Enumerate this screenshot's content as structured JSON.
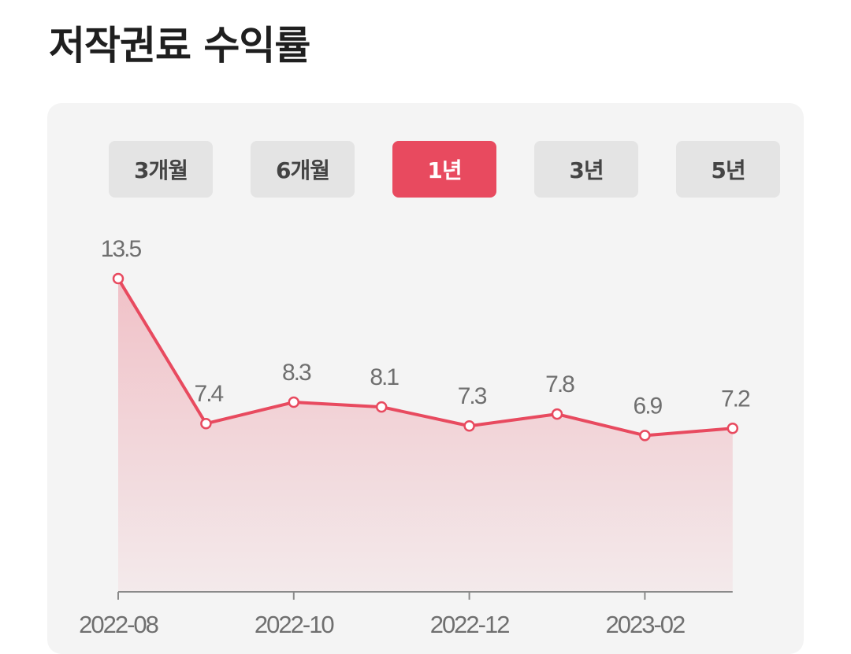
{
  "page": {
    "title": "저작권료 수익률"
  },
  "tabs": [
    {
      "label": "3개월",
      "active": false
    },
    {
      "label": "6개월",
      "active": false
    },
    {
      "label": "1년",
      "active": true
    },
    {
      "label": "3년",
      "active": false
    },
    {
      "label": "5년",
      "active": false
    }
  ],
  "colors": {
    "accent": "#e84a5f",
    "tab_inactive": "#e4e4e4",
    "card_bg": "#f4f4f4",
    "label_text": "#6f6f6f"
  },
  "chart_data": {
    "type": "area",
    "x": [
      "2022-08",
      "2022-09",
      "2022-10",
      "2022-11",
      "2022-12",
      "2023-01",
      "2023-02",
      "2023-03"
    ],
    "values": [
      13.5,
      7.4,
      8.3,
      8.1,
      7.3,
      7.8,
      6.9,
      7.2
    ],
    "value_labels": [
      "13.5",
      "7.4",
      "8.3",
      "8.1",
      "7.3",
      "7.8",
      "6.9",
      "7.2"
    ],
    "x_tick_labels": [
      "2022-08",
      "2022-10",
      "2022-12",
      "2023-02"
    ],
    "title": "",
    "xlabel": "",
    "ylabel": "",
    "grid": false,
    "legend": "none"
  }
}
